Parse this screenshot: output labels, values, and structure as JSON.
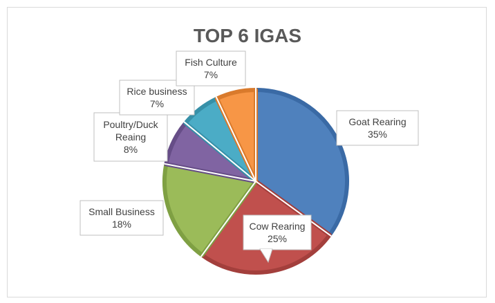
{
  "chart_data": {
    "type": "pie",
    "title": "TOP 6 IGAS",
    "slices": [
      {
        "name": "Goat Rearing",
        "value": 35,
        "label": [
          "Goat Rearing",
          "35%"
        ],
        "color": "#4f81bd",
        "edge": "#3a6aa5"
      },
      {
        "name": "Cow Rearing",
        "value": 25,
        "label": [
          "Cow Rearing",
          "25%"
        ],
        "color": "#c0504d",
        "edge": "#a33f3c"
      },
      {
        "name": "Small Business",
        "value": 18,
        "label": [
          "Small Business",
          "18%"
        ],
        "color": "#9bbb59",
        "edge": "#7fa043"
      },
      {
        "name": "Poultry/Duck Reaing",
        "value": 8,
        "label": [
          "Poultry/Duck",
          "Reaing",
          "8%"
        ],
        "color": "#8064a2",
        "edge": "#664d87"
      },
      {
        "name": "Rice business",
        "value": 7,
        "label": [
          "Rice business",
          "7%"
        ],
        "color": "#4bacc6",
        "edge": "#3790a8"
      },
      {
        "name": "Fish Culture",
        "value": 7,
        "label": [
          "Fish Culture",
          "7%"
        ],
        "color": "#f79646",
        "edge": "#d97a2c"
      }
    ]
  }
}
